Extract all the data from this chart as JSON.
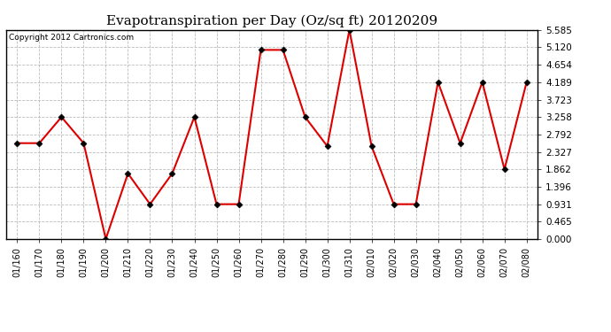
{
  "title": "Evapotranspiration per Day (Oz/sq ft) 20120209",
  "copyright": "Copyright 2012 Cartronics.com",
  "dates": [
    "01/16",
    "01/17",
    "01/18",
    "01/19",
    "01/20",
    "01/21",
    "01/22",
    "01/23",
    "01/24",
    "01/25",
    "01/26",
    "01/27",
    "01/28",
    "01/29",
    "01/30",
    "01/31",
    "02/01",
    "02/02",
    "02/03",
    "02/04",
    "02/05",
    "02/06",
    "02/07",
    "02/08"
  ],
  "values": [
    2.56,
    2.56,
    3.258,
    2.56,
    0.0,
    1.75,
    0.931,
    1.75,
    3.258,
    0.931,
    0.931,
    5.05,
    5.05,
    3.258,
    2.48,
    5.585,
    2.48,
    0.931,
    0.931,
    4.189,
    2.56,
    4.189,
    1.862,
    4.189
  ],
  "line_color": "#dd0000",
  "marker_color": "#000000",
  "bg_color": "#ffffff",
  "plot_bg_color": "#ffffff",
  "grid_color": "#bbbbbb",
  "ylim": [
    0,
    5.585
  ],
  "yticks": [
    0.0,
    0.465,
    0.931,
    1.396,
    1.862,
    2.327,
    2.792,
    3.258,
    3.723,
    4.189,
    4.654,
    5.12,
    5.585
  ]
}
